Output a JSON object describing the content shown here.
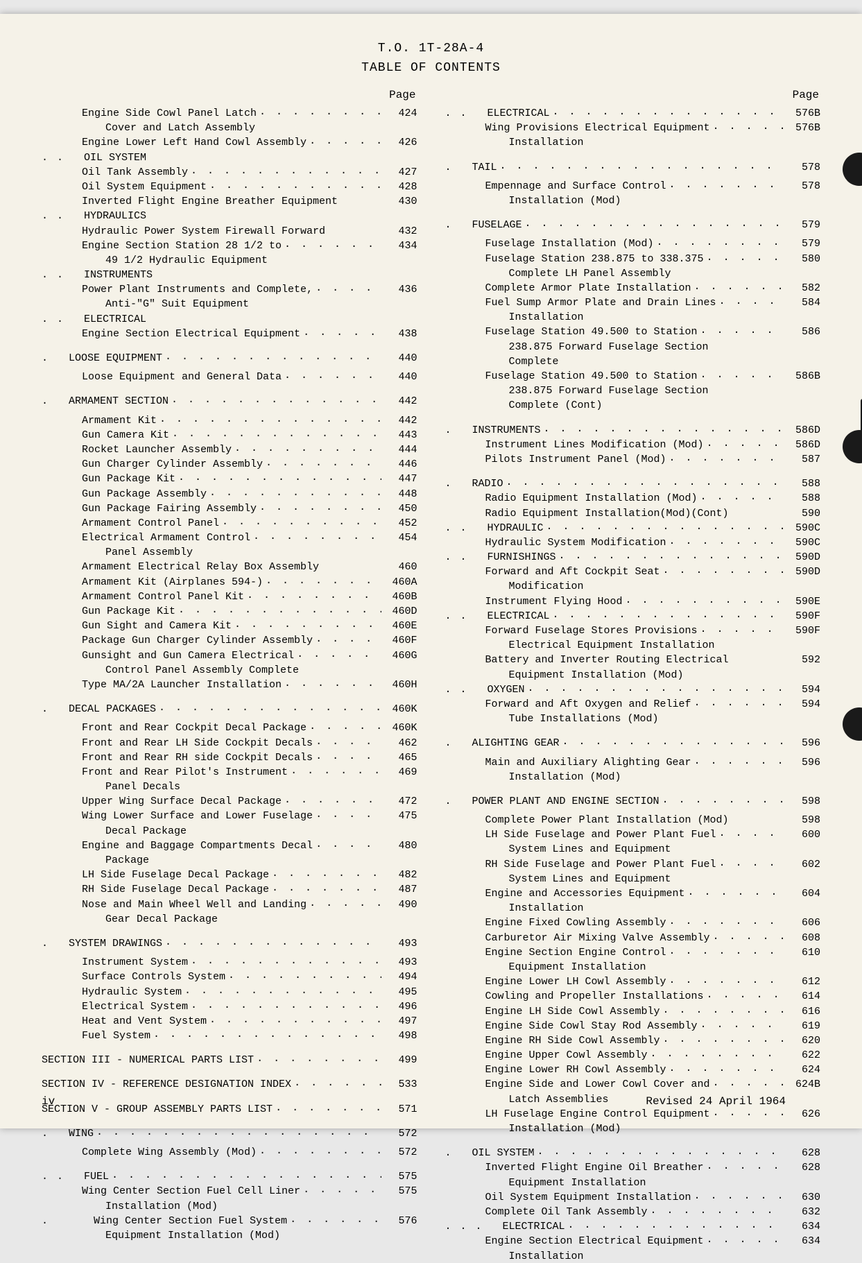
{
  "header": {
    "title": "T.O. 1T-28A-4",
    "subtitle": "TABLE OF CONTENTS",
    "page_label": "Page"
  },
  "footer": {
    "left": "iv",
    "right": "Revised 24 April 1964"
  },
  "colors": {
    "page_bg": "#f5f2e8",
    "text": "#2a2a2a",
    "hole": "#1a1a1a"
  },
  "left_column": [
    {
      "indent": 2,
      "label": "Engine Side Cowl Panel Latch",
      "page": "424"
    },
    {
      "indent": 3,
      "label": "Cover and Latch Assembly",
      "nopage": true,
      "nodots": true
    },
    {
      "indent": 2,
      "label": "Engine Lower Left Hand Cowl Assembly",
      "page": "426"
    },
    {
      "indent": 1,
      "pre": ". .",
      "label": "OIL SYSTEM",
      "nopage": true,
      "nodots": true
    },
    {
      "indent": 2,
      "label": "Oil Tank Assembly",
      "page": "427"
    },
    {
      "indent": 2,
      "label": "Oil System Equipment",
      "page": "428"
    },
    {
      "indent": 2,
      "label": "Inverted Flight Engine Breather Equipment",
      "page": "430",
      "nodots": true
    },
    {
      "indent": 1,
      "pre": ". .",
      "label": "HYDRAULICS",
      "nopage": true,
      "nodots": true
    },
    {
      "indent": 2,
      "label": "Hydraulic Power System Firewall Forward",
      "page": "432",
      "nodots": true
    },
    {
      "indent": 2,
      "label": "Engine Section Station 28 1/2 to",
      "page": "434"
    },
    {
      "indent": 3,
      "label": "49 1/2 Hydraulic Equipment",
      "nopage": true,
      "nodots": true
    },
    {
      "indent": 1,
      "pre": ". .",
      "label": "INSTRUMENTS",
      "nopage": true,
      "nodots": true
    },
    {
      "indent": 2,
      "label": "Power Plant Instruments and Complete,",
      "page": "436"
    },
    {
      "indent": 3,
      "label": "Anti-\"G\" Suit Equipment",
      "nopage": true,
      "nodots": true
    },
    {
      "indent": 1,
      "pre": ". .",
      "label": "ELECTRICAL",
      "nopage": true,
      "nodots": true
    },
    {
      "indent": 2,
      "label": "Engine Section Electrical Equipment",
      "page": "438"
    },
    {
      "spacer": true
    },
    {
      "indent": 1,
      "pre": ".",
      "label": "LOOSE EQUIPMENT",
      "page": "440"
    },
    {
      "spacer_sm": true
    },
    {
      "indent": 2,
      "label": "Loose Equipment and General Data",
      "page": "440"
    },
    {
      "spacer": true
    },
    {
      "indent": 1,
      "pre": ".",
      "label": "ARMAMENT SECTION",
      "page": "442"
    },
    {
      "spacer_sm": true
    },
    {
      "indent": 2,
      "label": "Armament Kit",
      "page": "442"
    },
    {
      "indent": 2,
      "label": "Gun Camera Kit",
      "page": "443"
    },
    {
      "indent": 2,
      "label": "Rocket Launcher Assembly",
      "page": "444"
    },
    {
      "indent": 2,
      "label": "Gun Charger Cylinder Assembly",
      "page": "446"
    },
    {
      "indent": 2,
      "label": "Gun Package Kit",
      "page": "447"
    },
    {
      "indent": 2,
      "label": "Gun Package Assembly",
      "page": "448"
    },
    {
      "indent": 2,
      "label": "Gun Package Fairing Assembly",
      "page": "450"
    },
    {
      "indent": 2,
      "label": "Armament Control Panel",
      "page": "452"
    },
    {
      "indent": 2,
      "label": "Electrical Armament Control",
      "page": "454"
    },
    {
      "indent": 3,
      "label": "Panel Assembly",
      "nopage": true,
      "nodots": true
    },
    {
      "indent": 2,
      "label": "Armament Electrical Relay Box Assembly",
      "page": "460",
      "nodots": true
    },
    {
      "indent": 2,
      "label": "Armament Kit (Airplanes 594-)",
      "page": "460A"
    },
    {
      "indent": 2,
      "label": "Armament Control Panel Kit",
      "page": "460B"
    },
    {
      "indent": 2,
      "label": "Gun Package Kit",
      "page": "460D"
    },
    {
      "indent": 2,
      "label": "Gun Sight and Camera Kit",
      "page": "460E"
    },
    {
      "indent": 2,
      "label": "Package Gun Charger Cylinder Assembly",
      "page": "460F"
    },
    {
      "indent": 2,
      "label": "Gunsight and Gun Camera Electrical",
      "page": "460G"
    },
    {
      "indent": 3,
      "label": "Control Panel Assembly Complete",
      "nopage": true,
      "nodots": true
    },
    {
      "indent": 2,
      "label": "Type MA/2A Launcher Installation",
      "page": "460H"
    },
    {
      "spacer": true
    },
    {
      "indent": 1,
      "pre": ".",
      "label": "DECAL PACKAGES",
      "page": "460K"
    },
    {
      "spacer_sm": true
    },
    {
      "indent": 2,
      "label": "Front and Rear Cockpit Decal Package",
      "page": "460K"
    },
    {
      "indent": 2,
      "label": "Front and Rear LH Side Cockpit Decals",
      "page": "462"
    },
    {
      "indent": 2,
      "label": "Front and Rear RH side Cockpit Decals",
      "page": "465"
    },
    {
      "indent": 2,
      "label": "Front and Rear Pilot's Instrument",
      "page": "469"
    },
    {
      "indent": 3,
      "label": "Panel Decals",
      "nopage": true,
      "nodots": true
    },
    {
      "indent": 2,
      "label": "Upper Wing Surface Decal Package",
      "page": "472"
    },
    {
      "indent": 2,
      "label": "Wing Lower Surface and Lower Fuselage",
      "page": "475"
    },
    {
      "indent": 3,
      "label": "Decal Package",
      "nopage": true,
      "nodots": true
    },
    {
      "indent": 2,
      "label": "Engine and Baggage Compartments Decal",
      "page": "480"
    },
    {
      "indent": 3,
      "label": "Package",
      "nopage": true,
      "nodots": true
    },
    {
      "indent": 2,
      "label": "LH Side Fuselage Decal Package",
      "page": "482"
    },
    {
      "indent": 2,
      "label": "RH Side Fuselage Decal Package",
      "page": "487"
    },
    {
      "indent": 2,
      "label": "Nose and Main Wheel Well and Landing",
      "page": "490"
    },
    {
      "indent": 3,
      "label": "Gear Decal Package",
      "nopage": true,
      "nodots": true
    },
    {
      "spacer": true
    },
    {
      "indent": 1,
      "pre": ".",
      "label": "SYSTEM DRAWINGS",
      "page": "493"
    },
    {
      "spacer_sm": true
    },
    {
      "indent": 2,
      "label": "Instrument System",
      "page": "493"
    },
    {
      "indent": 2,
      "label": "Surface Controls System",
      "page": "494"
    },
    {
      "indent": 2,
      "label": "Hydraulic System",
      "page": "495"
    },
    {
      "indent": 2,
      "label": "Electrical System",
      "page": "496"
    },
    {
      "indent": 2,
      "label": "Heat and Vent System",
      "page": "497"
    },
    {
      "indent": 2,
      "label": "Fuel System",
      "page": "498"
    },
    {
      "spacer": true
    },
    {
      "indent": 0,
      "label": "SECTION III - NUMERICAL PARTS LIST",
      "page": "499"
    },
    {
      "spacer": true
    },
    {
      "indent": 0,
      "label": "SECTION IV - REFERENCE DESIGNATION INDEX",
      "page": "533"
    },
    {
      "spacer": true
    },
    {
      "indent": 0,
      "label": "SECTION V - GROUP ASSEMBLY PARTS LIST",
      "page": "571"
    },
    {
      "spacer": true
    },
    {
      "indent": 1,
      "pre": ".",
      "label": "WING",
      "page": "572"
    },
    {
      "spacer_sm": true
    },
    {
      "indent": 2,
      "label": "Complete Wing Assembly (Mod)",
      "page": "572"
    },
    {
      "spacer": true
    },
    {
      "indent": 1,
      "pre": ". .",
      "label": "FUEL",
      "page": "575"
    },
    {
      "indent": 2,
      "label": "Wing Center Section Fuel Cell Liner",
      "page": "575"
    },
    {
      "indent": 3,
      "label": "Installation (Mod)",
      "nopage": true,
      "nodots": true
    },
    {
      "indent": 2,
      "pre": ".",
      "label": "Wing Center Section Fuel System",
      "page": "576"
    },
    {
      "indent": 3,
      "label": "Equipment Installation (Mod)",
      "nopage": true,
      "nodots": true
    }
  ],
  "right_column": [
    {
      "indent": 1,
      "pre": ". .",
      "label": "ELECTRICAL",
      "page": "576B"
    },
    {
      "indent": 2,
      "label": "Wing Provisions Electrical Equipment",
      "page": "576B"
    },
    {
      "indent": 3,
      "label": "Installation",
      "nopage": true,
      "nodots": true
    },
    {
      "spacer": true
    },
    {
      "indent": 1,
      "pre": ".",
      "label": "TAIL",
      "page": "578"
    },
    {
      "spacer_sm": true
    },
    {
      "indent": 2,
      "label": "Empennage and Surface Control",
      "page": "578"
    },
    {
      "indent": 3,
      "label": "Installation (Mod)",
      "nopage": true,
      "nodots": true
    },
    {
      "spacer": true
    },
    {
      "indent": 1,
      "pre": ".",
      "label": "FUSELAGE",
      "page": "579"
    },
    {
      "spacer_sm": true
    },
    {
      "indent": 2,
      "label": "Fuselage Installation (Mod)",
      "page": "579"
    },
    {
      "indent": 2,
      "label": "Fuselage Station 238.875 to 338.375",
      "page": "580"
    },
    {
      "indent": 3,
      "label": "Complete LH Panel Assembly",
      "nopage": true,
      "nodots": true
    },
    {
      "indent": 2,
      "label": "Complete Armor Plate Installation",
      "page": "582"
    },
    {
      "indent": 2,
      "label": "Fuel Sump Armor Plate and Drain Lines",
      "page": "584"
    },
    {
      "indent": 3,
      "label": "Installation",
      "nopage": true,
      "nodots": true
    },
    {
      "indent": 2,
      "label": "Fuselage Station 49.500 to Station",
      "page": "586"
    },
    {
      "indent": 3,
      "label": "238.875 Forward Fuselage Section",
      "nopage": true,
      "nodots": true
    },
    {
      "indent": 3,
      "label": "Complete",
      "nopage": true,
      "nodots": true
    },
    {
      "indent": 2,
      "label": "Fuselage Station 49.500 to Station",
      "page": "586B"
    },
    {
      "indent": 3,
      "label": "238.875 Forward Fuselage Section",
      "nopage": true,
      "nodots": true
    },
    {
      "indent": 3,
      "label": "Complete (Cont)",
      "nopage": true,
      "nodots": true
    },
    {
      "spacer": true
    },
    {
      "indent": 1,
      "pre": ".",
      "label": "INSTRUMENTS",
      "page": "586D"
    },
    {
      "indent": 2,
      "label": "Instrument Lines Modification (Mod)",
      "page": "586D"
    },
    {
      "indent": 2,
      "label": "Pilots Instrument Panel (Mod)",
      "page": "587"
    },
    {
      "spacer": true
    },
    {
      "indent": 1,
      "pre": ".",
      "label": "RADIO",
      "page": "588"
    },
    {
      "indent": 2,
      "label": "Radio Equipment Installation (Mod)",
      "page": "588"
    },
    {
      "indent": 2,
      "label": "Radio Equipment Installation(Mod)(Cont)",
      "page": "590",
      "nodots": true
    },
    {
      "indent": 1,
      "pre": ". .",
      "label": "HYDRAULIC",
      "page": "590C"
    },
    {
      "indent": 2,
      "label": "Hydraulic System Modification",
      "page": "590C"
    },
    {
      "indent": 1,
      "pre": ". .",
      "label": "FURNISHINGS",
      "page": "590D"
    },
    {
      "indent": 2,
      "label": "Forward and Aft Cockpit Seat",
      "page": "590D"
    },
    {
      "indent": 3,
      "label": "Modification",
      "nopage": true,
      "nodots": true
    },
    {
      "indent": 2,
      "label": "Instrument Flying Hood",
      "page": "590E"
    },
    {
      "indent": 1,
      "pre": ". .",
      "label": "ELECTRICAL",
      "page": "590F"
    },
    {
      "indent": 2,
      "label": "Forward Fuselage Stores Provisions",
      "page": "590F"
    },
    {
      "indent": 3,
      "label": "Electrical Equipment Installation",
      "nopage": true,
      "nodots": true
    },
    {
      "indent": 2,
      "label": "Battery and Inverter Routing Electrical",
      "page": "592",
      "nodots": true
    },
    {
      "indent": 3,
      "label": "Equipment Installation (Mod)",
      "nopage": true,
      "nodots": true
    },
    {
      "indent": 1,
      "pre": ". .",
      "label": "OXYGEN",
      "page": "594"
    },
    {
      "indent": 2,
      "label": "Forward and Aft Oxygen and Relief",
      "page": "594"
    },
    {
      "indent": 3,
      "label": "Tube Installations (Mod)",
      "nopage": true,
      "nodots": true
    },
    {
      "spacer": true
    },
    {
      "indent": 1,
      "pre": ".",
      "label": "ALIGHTING GEAR",
      "page": "596"
    },
    {
      "spacer_sm": true
    },
    {
      "indent": 2,
      "label": "Main and Auxiliary Alighting Gear",
      "page": "596"
    },
    {
      "indent": 3,
      "label": "Installation (Mod)",
      "nopage": true,
      "nodots": true
    },
    {
      "spacer": true
    },
    {
      "indent": 1,
      "pre": ".",
      "label": "POWER PLANT AND ENGINE SECTION",
      "page": "598"
    },
    {
      "spacer_sm": true
    },
    {
      "indent": 2,
      "label": "Complete Power Plant Installation (Mod)",
      "page": "598",
      "nodots": true
    },
    {
      "indent": 2,
      "label": "LH Side Fuselage and Power Plant Fuel",
      "page": "600"
    },
    {
      "indent": 3,
      "label": "System Lines and Equipment",
      "nopage": true,
      "nodots": true
    },
    {
      "indent": 2,
      "label": "RH Side Fuselage and Power Plant Fuel",
      "page": "602"
    },
    {
      "indent": 3,
      "label": "System Lines and Equipment",
      "nopage": true,
      "nodots": true
    },
    {
      "indent": 2,
      "label": "Engine and Accessories Equipment",
      "page": "604"
    },
    {
      "indent": 3,
      "label": "Installation",
      "nopage": true,
      "nodots": true
    },
    {
      "indent": 2,
      "label": "Engine Fixed Cowling Assembly",
      "page": "606"
    },
    {
      "indent": 2,
      "label": "Carburetor Air Mixing Valve Assembly",
      "page": "608"
    },
    {
      "indent": 2,
      "label": "Engine Section Engine Control",
      "page": "610"
    },
    {
      "indent": 3,
      "label": "Equipment Installation",
      "nopage": true,
      "nodots": true
    },
    {
      "indent": 2,
      "label": "Engine Lower LH Cowl Assembly",
      "page": "612"
    },
    {
      "indent": 2,
      "label": "Cowling and Propeller Installations",
      "page": "614"
    },
    {
      "indent": 2,
      "label": "Engine LH Side Cowl Assembly",
      "page": "616"
    },
    {
      "indent": 2,
      "label": "Engine Side Cowl Stay Rod Assembly",
      "page": "619"
    },
    {
      "indent": 2,
      "label": "Engine RH Side Cowl Assembly",
      "page": "620"
    },
    {
      "indent": 2,
      "label": "Engine Upper Cowl Assembly",
      "page": "622"
    },
    {
      "indent": 2,
      "label": "Engine Lower RH Cowl Assembly",
      "page": "624"
    },
    {
      "indent": 2,
      "label": "Engine Side and Lower Cowl Cover and",
      "page": "624B"
    },
    {
      "indent": 3,
      "label": "Latch Assemblies",
      "nopage": true,
      "nodots": true
    },
    {
      "indent": 2,
      "label": "LH Fuselage Engine Control Equipment",
      "page": "626"
    },
    {
      "indent": 3,
      "label": "Installation (Mod)",
      "nopage": true,
      "nodots": true
    },
    {
      "spacer": true
    },
    {
      "indent": 1,
      "pre": ".",
      "label": "OIL SYSTEM",
      "page": "628"
    },
    {
      "indent": 2,
      "label": "Inverted Flight Engine Oil Breather",
      "page": "628"
    },
    {
      "indent": 3,
      "label": "Equipment Installation",
      "nopage": true,
      "nodots": true
    },
    {
      "indent": 2,
      "label": "Oil System Equipment Installation",
      "page": "630"
    },
    {
      "indent": 2,
      "label": "Complete Oil Tank Assembly",
      "page": "632"
    },
    {
      "indent": 1,
      "pre": ". . .",
      "label": "ELECTRICAL",
      "page": "634"
    },
    {
      "indent": 2,
      "label": "Engine Section Electrical Equipment",
      "page": "634"
    },
    {
      "indent": 3,
      "label": "Installation",
      "nopage": true,
      "nodots": true
    }
  ]
}
